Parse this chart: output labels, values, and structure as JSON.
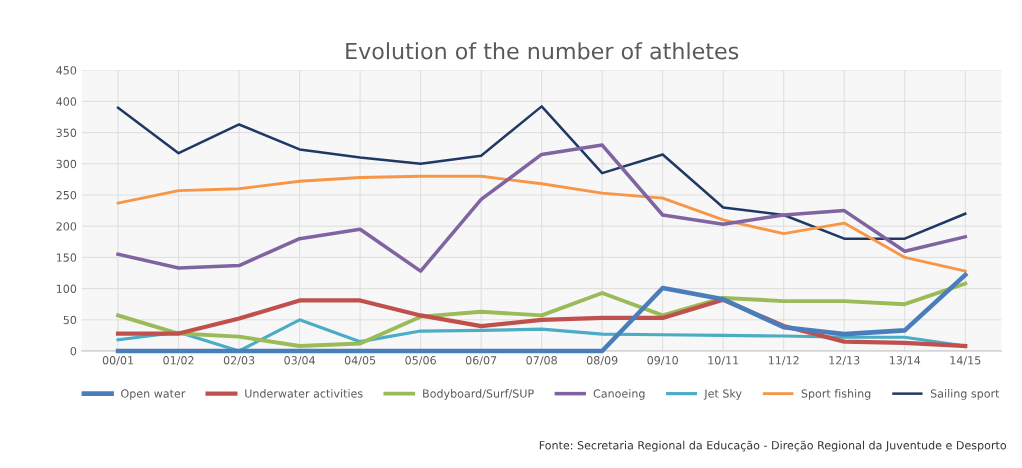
{
  "chart_data": {
    "type": "line",
    "title": "Evolution of the number of athletes",
    "categories": [
      "00/01",
      "01/02",
      "02/03",
      "03/04",
      "04/05",
      "05/06",
      "06/07",
      "07/08",
      "08/09",
      "09/10",
      "10/11",
      "11/12",
      "12/13",
      "13/14",
      "14/15"
    ],
    "series": [
      {
        "name": "Open water",
        "color": "#4a7ebb",
        "values": [
          0,
          0,
          0,
          0,
          0,
          0,
          0,
          0,
          0,
          101,
          83,
          38,
          27,
          33,
          122
        ]
      },
      {
        "name": "Underwater activities",
        "color": "#c0504d",
        "values": [
          28,
          28,
          52,
          81,
          81,
          57,
          40,
          50,
          53,
          53,
          82,
          40,
          15,
          13,
          8
        ]
      },
      {
        "name": "Bodyboard/Surf/SUP",
        "color": "#9bbb59",
        "values": [
          57,
          28,
          23,
          8,
          12,
          55,
          63,
          57,
          93,
          57,
          85,
          80,
          80,
          75,
          108
        ]
      },
      {
        "name": "Canoeing",
        "color": "#8064a2",
        "values": [
          155,
          133,
          137,
          180,
          195,
          128,
          243,
          315,
          330,
          218,
          203,
          218,
          225,
          160,
          183
        ]
      },
      {
        "name": "Jet Sky",
        "color": "#4bacc6",
        "values": [
          18,
          30,
          0,
          50,
          15,
          32,
          33,
          35,
          27,
          26,
          25,
          24,
          22,
          22,
          8
        ]
      },
      {
        "name": "Sport fishing",
        "color": "#f79646",
        "values": [
          237,
          257,
          260,
          272,
          278,
          280,
          280,
          268,
          253,
          245,
          210,
          188,
          205,
          150,
          128
        ]
      },
      {
        "name": "Sailing sport",
        "color": "#1f3864",
        "values": [
          390,
          317,
          363,
          323,
          310,
          300,
          313,
          392,
          285,
          315,
          230,
          218,
          180,
          180,
          220
        ]
      }
    ],
    "ylim": [
      0,
      450
    ],
    "yticks": [
      0,
      50,
      100,
      150,
      200,
      250,
      300,
      350,
      400,
      450
    ],
    "grid": true,
    "legend": "bottom",
    "marker": "none",
    "line_style": "solid",
    "annotations": [
      "Fonte: Secretaria Regional da Educação - Direção Regional da Juventude e Desporto"
    ]
  }
}
